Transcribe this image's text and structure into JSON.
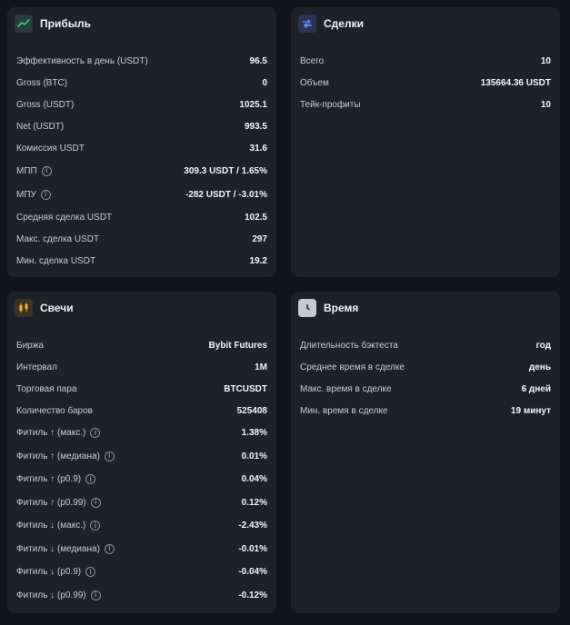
{
  "profit": {
    "title": "Прибыль",
    "rows": [
      {
        "label": "Эффективность в день (USDT)",
        "value": "96.5"
      },
      {
        "label": "Gross (BTC)",
        "value": "0"
      },
      {
        "label": "Gross (USDT)",
        "value": "1025.1"
      },
      {
        "label": "Net (USDT)",
        "value": "993.5"
      },
      {
        "label": "Комиссия USDT",
        "value": "31.6"
      },
      {
        "label": "МПП",
        "value": "309.3 USDT / 1.65%",
        "info": true
      },
      {
        "label": "МПУ",
        "value": "-282 USDT / -3.01%",
        "info": true
      },
      {
        "label": "Средняя сделка USDT",
        "value": "102.5"
      },
      {
        "label": "Макс. сделка USDT",
        "value": "297"
      },
      {
        "label": "Мин. сделка USDT",
        "value": "19.2"
      }
    ]
  },
  "deals": {
    "title": "Сделки",
    "rows": [
      {
        "label": "Всего",
        "value": "10"
      },
      {
        "label": "Объем",
        "value": "135664.36 USDT"
      },
      {
        "label": "Тейк-профиты",
        "value": "10"
      }
    ]
  },
  "candles": {
    "title": "Свечи",
    "rows": [
      {
        "label": "Биржа",
        "value": "Bybit Futures"
      },
      {
        "label": "Интервал",
        "value": "1M"
      },
      {
        "label": "Торговая пара",
        "value": "BTCUSDT"
      },
      {
        "label": "Количество баров",
        "value": "525408"
      },
      {
        "label": "Фитиль ↑ (макс.)",
        "value": "1.38%",
        "info": true
      },
      {
        "label": "Фитиль ↑ (медиана)",
        "value": "0.01%",
        "info": true
      },
      {
        "label": "Фитиль ↑ (p0.9)",
        "value": "0.04%",
        "info": true
      },
      {
        "label": "Фитиль ↑ (p0.99)",
        "value": "0.12%",
        "info": true
      },
      {
        "label": "Фитиль ↓ (макс.)",
        "value": "-2.43%",
        "info": true
      },
      {
        "label": "Фитиль ↓ (медиана)",
        "value": "-0.01%",
        "info": true
      },
      {
        "label": "Фитиль ↓ (p0.9)",
        "value": "-0.04%",
        "info": true
      },
      {
        "label": "Фитиль ↓ (p0.99)",
        "value": "-0.12%",
        "info": true
      }
    ]
  },
  "time": {
    "title": "Время",
    "rows": [
      {
        "label": "Длительность бэктеста",
        "value": "год"
      },
      {
        "label": "Среднее время в сделке",
        "value": "день"
      },
      {
        "label": "Макс. время в сделке",
        "value": "6 дней"
      },
      {
        "label": "Мин. время в сделке",
        "value": "19 минут"
      }
    ]
  },
  "icons": {
    "profit": "trend-line-icon",
    "deals": "swap-arrows-icon",
    "candles": "candlestick-icon",
    "time": "clock-icon",
    "info": "info-icon"
  },
  "colors": {
    "profit_icon": "#33d17a",
    "deals_icon": "#5b7cf0",
    "candles_icon": "#f2b233"
  }
}
